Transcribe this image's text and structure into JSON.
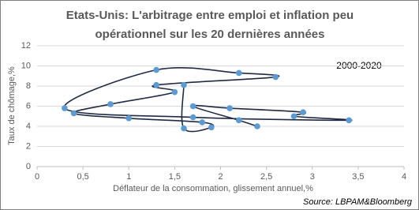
{
  "chart_data": {
    "type": "scatter-line",
    "title": [
      "Etats-Unis:  L'arbitrage entre emploi et inflation peu",
      "opérationnel sur les 20 dernières années"
    ],
    "annotation": "2000-2020",
    "x_label": "Déflateur de la consommation, glissement annuel,%",
    "y_label": "Taux de chômage,%",
    "source": "Source: LBPAM&Bloomberg",
    "series": [
      {
        "name": "2000-2020",
        "color": "#5b9bd5",
        "line_color": "#1f2a44",
        "x": [
          2.4,
          2.2,
          1.7,
          2.1,
          2.9,
          2.8,
          3.4,
          1.7,
          0.3,
          1.3,
          2.2,
          2.6,
          1.3,
          1.5,
          0.8,
          0.4,
          1.0,
          1.8,
          1.9,
          1.6,
          1.6
        ],
        "values": [
          4.0,
          4.6,
          6.0,
          5.8,
          5.4,
          5.0,
          4.6,
          4.9,
          5.8,
          9.6,
          9.3,
          8.9,
          8.1,
          7.4,
          6.2,
          5.3,
          4.8,
          4.4,
          3.9,
          3.8,
          8.1
        ]
      }
    ],
    "xlim": [
      0,
      4
    ],
    "xticks": [
      0,
      {
        "value": 0.5,
        "label": "0,5"
      },
      1,
      {
        "value": 1.5,
        "label": "1,5"
      },
      2,
      {
        "value": 2.5,
        "label": "2,5"
      },
      3,
      {
        "value": 3.5,
        "label": "3,5"
      },
      4
    ],
    "ylim": [
      0,
      12
    ],
    "yticks": [
      0,
      2,
      4,
      6,
      8,
      10,
      12
    ],
    "grid": true
  }
}
